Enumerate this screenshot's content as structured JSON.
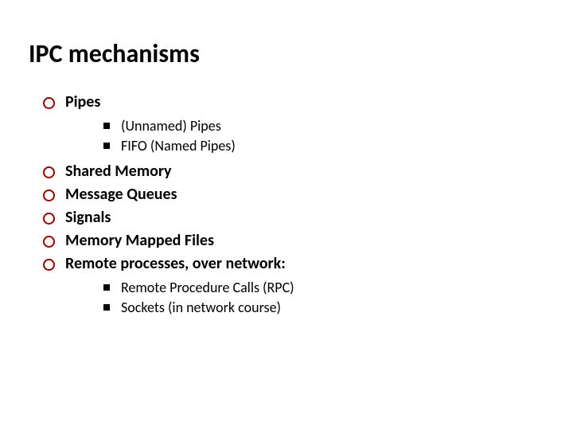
{
  "slide": {
    "title": "IPC mechanisms",
    "title_color": "#000000",
    "title_fontsize": 32,
    "background_color": "#ffffff",
    "level1_bullet_border_color": "#990000",
    "level2_bullet_color": "#000000",
    "level1_fontsize": 20,
    "level2_fontsize": 18,
    "items": [
      {
        "label": "Pipes",
        "children": [
          {
            "label": "(Unnamed) Pipes"
          },
          {
            "label": "FIFO (Named Pipes)"
          }
        ]
      },
      {
        "label": "Shared Memory"
      },
      {
        "label": "Message Queues"
      },
      {
        "label": "Signals"
      },
      {
        "label": "Memory Mapped Files"
      },
      {
        "label": "Remote processes, over network:",
        "children": [
          {
            "label": "Remote Procedure Calls (RPC)"
          },
          {
            "label": "Sockets (in network course)"
          }
        ]
      }
    ]
  }
}
